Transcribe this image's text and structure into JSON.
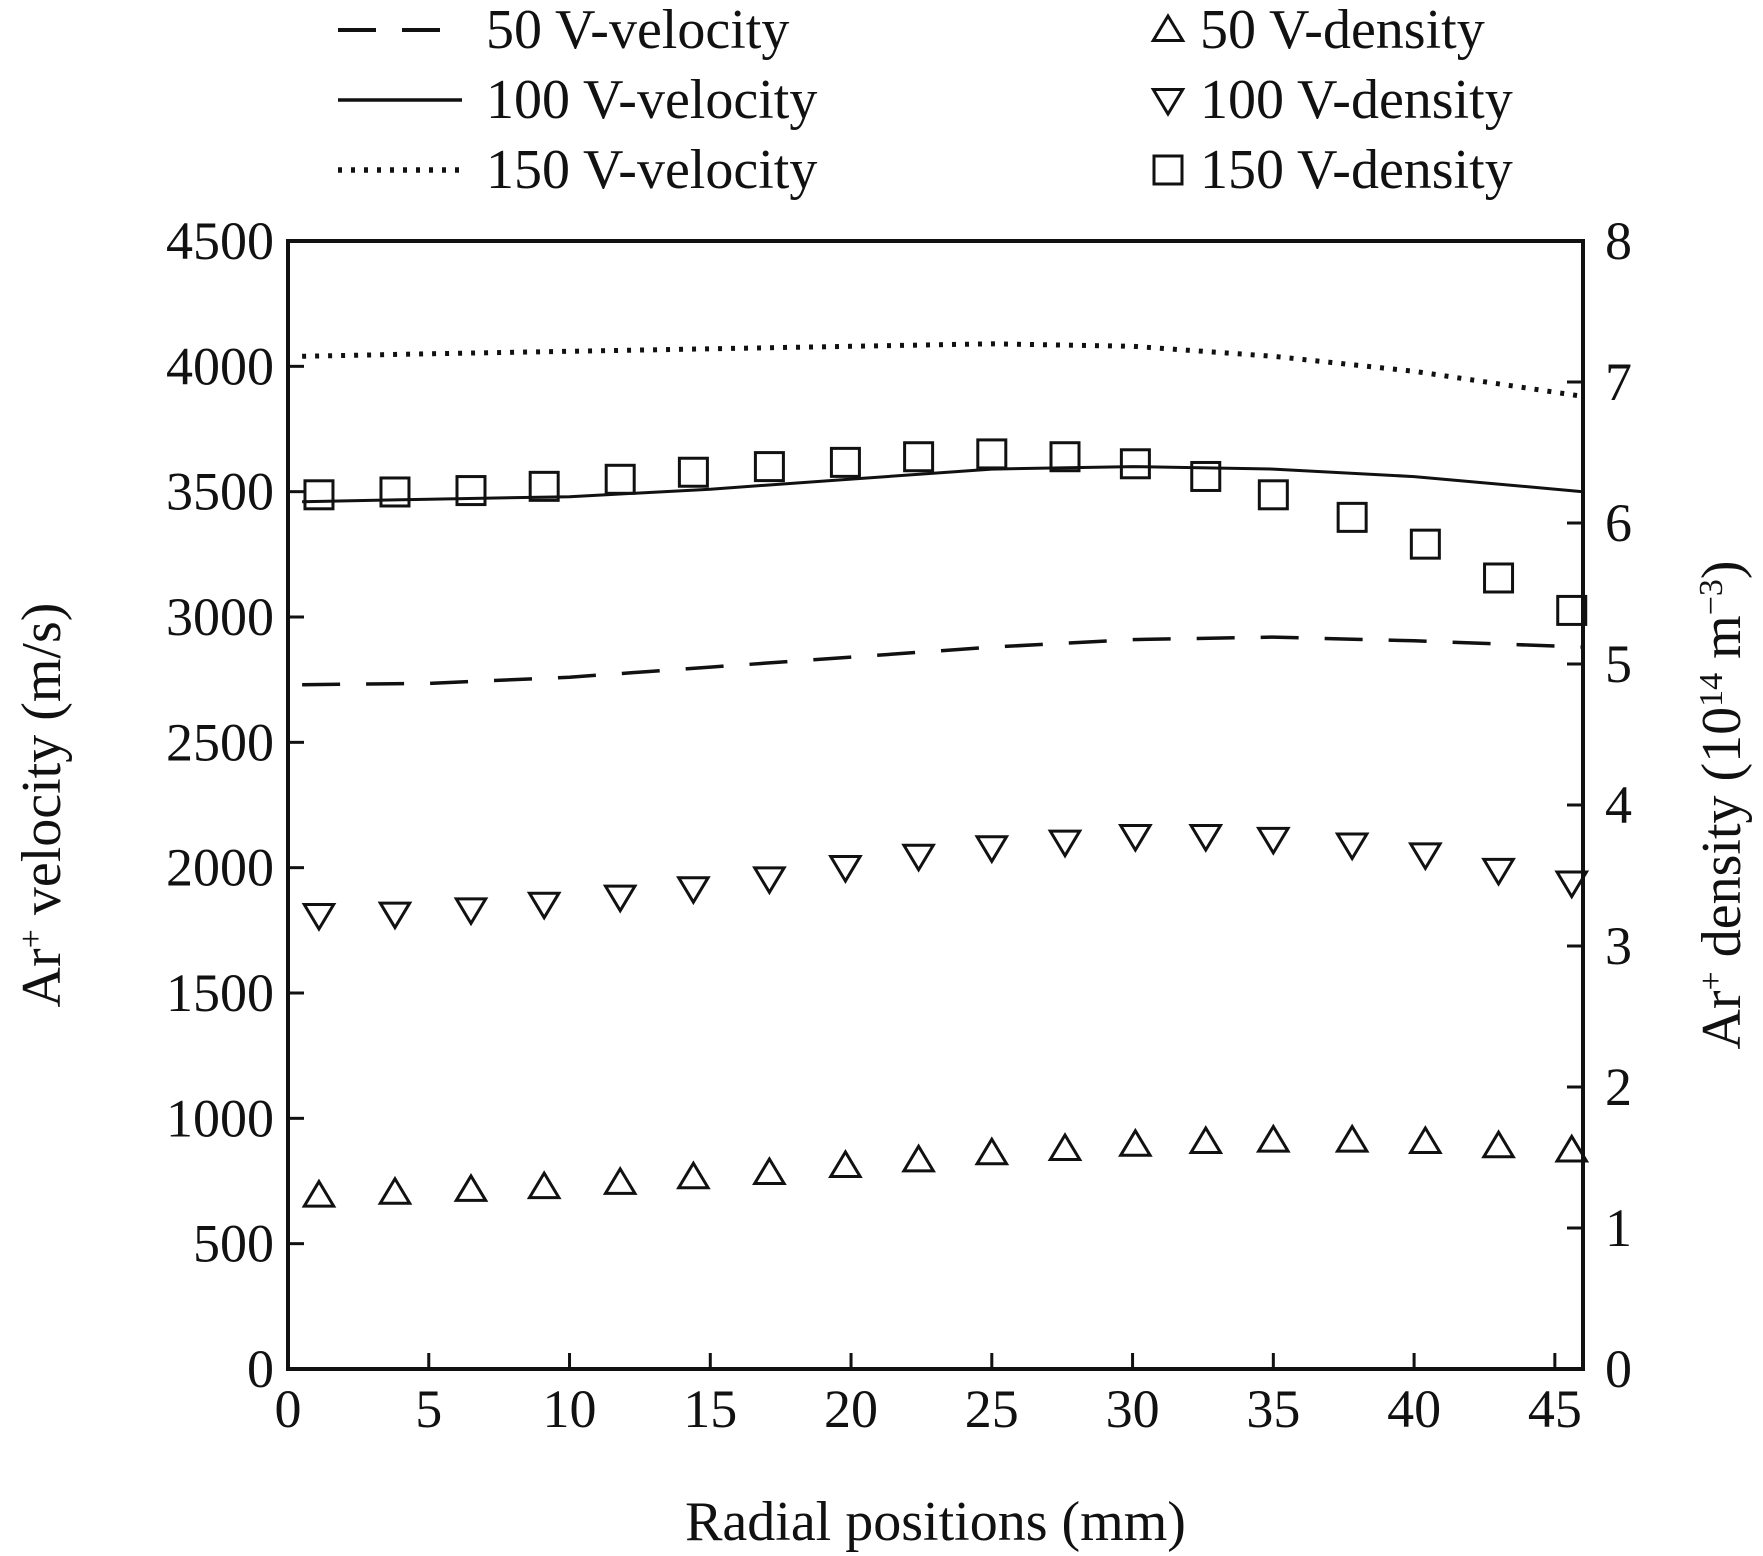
{
  "chart_data": {
    "type": "line",
    "xlabel": "Radial positions (mm)",
    "ylabel": {
      "base": "Ar",
      "sup": "+",
      "rest": " velocity (m/s)"
    },
    "y2label": {
      "base": "Ar",
      "sup": "+",
      "mid": " density (10",
      "sup2": "14",
      "mid2": " m",
      "sup3": "−3",
      "end": ")"
    },
    "xlim": [
      0,
      46
    ],
    "ylim": [
      0,
      4500
    ],
    "y2lim": [
      0,
      8
    ],
    "xticks": [
      "0",
      "5",
      "10",
      "15",
      "20",
      "25",
      "30",
      "35",
      "40",
      "45"
    ],
    "yticks": [
      "0",
      "500",
      "1000",
      "1500",
      "2000",
      "2500",
      "3000",
      "3500",
      "4000",
      "4500"
    ],
    "y2ticks": [
      "0",
      "1",
      "2",
      "3",
      "4",
      "5",
      "6",
      "7",
      "8"
    ],
    "series": [
      {
        "name": "50 V-velocity",
        "axis": "left",
        "style": "dashed",
        "x": [
          0.5,
          5,
          10,
          15,
          20,
          25,
          30,
          35,
          40,
          46
        ],
        "y": [
          2730,
          2735,
          2760,
          2800,
          2840,
          2880,
          2910,
          2920,
          2905,
          2880
        ]
      },
      {
        "name": "100 V-velocity",
        "axis": "left",
        "style": "solid",
        "x": [
          0.5,
          5,
          10,
          15,
          20,
          25,
          30,
          35,
          40,
          46
        ],
        "y": [
          3460,
          3470,
          3480,
          3510,
          3550,
          3590,
          3600,
          3590,
          3560,
          3500
        ]
      },
      {
        "name": "150 V-velocity",
        "axis": "left",
        "style": "dotted",
        "x": [
          0.5,
          5,
          10,
          15,
          20,
          25,
          30,
          35,
          40,
          46
        ],
        "y": [
          4040,
          4050,
          4060,
          4070,
          4080,
          4090,
          4080,
          4040,
          3980,
          3880
        ]
      },
      {
        "name": "50 V-density",
        "axis": "right",
        "marker": "triangle-up",
        "x": [
          1.1,
          3.8,
          6.5,
          9.1,
          11.8,
          14.4,
          17.1,
          19.8,
          22.4,
          25.0,
          27.6,
          30.1,
          32.6,
          35.0,
          37.8,
          40.4,
          43.0,
          45.6
        ],
        "y": [
          1.23,
          1.25,
          1.27,
          1.29,
          1.32,
          1.36,
          1.39,
          1.44,
          1.48,
          1.53,
          1.56,
          1.59,
          1.61,
          1.62,
          1.62,
          1.61,
          1.58,
          1.55
        ]
      },
      {
        "name": "100 V-density",
        "axis": "right",
        "marker": "triangle-down",
        "x": [
          1.1,
          3.8,
          6.5,
          9.1,
          11.8,
          14.4,
          17.1,
          19.8,
          22.4,
          25.0,
          27.6,
          30.1,
          32.6,
          35.0,
          37.8,
          40.4,
          43.0,
          45.6
        ],
        "y": [
          3.22,
          3.23,
          3.26,
          3.3,
          3.35,
          3.41,
          3.48,
          3.56,
          3.64,
          3.7,
          3.74,
          3.78,
          3.78,
          3.76,
          3.72,
          3.65,
          3.54,
          3.45
        ]
      },
      {
        "name": "150 V-density",
        "axis": "right",
        "marker": "square",
        "x": [
          1.1,
          3.8,
          6.5,
          9.1,
          11.8,
          14.4,
          17.1,
          19.8,
          22.4,
          25.0,
          27.6,
          30.1,
          32.6,
          35.0,
          37.8,
          40.4,
          43.0,
          45.6
        ],
        "y": [
          6.2,
          6.22,
          6.23,
          6.26,
          6.31,
          6.36,
          6.4,
          6.43,
          6.47,
          6.49,
          6.47,
          6.42,
          6.33,
          6.2,
          6.04,
          5.85,
          5.61,
          5.38
        ]
      }
    ],
    "legend": {
      "placement": "top, above plot, two columns"
    },
    "grid": false
  }
}
